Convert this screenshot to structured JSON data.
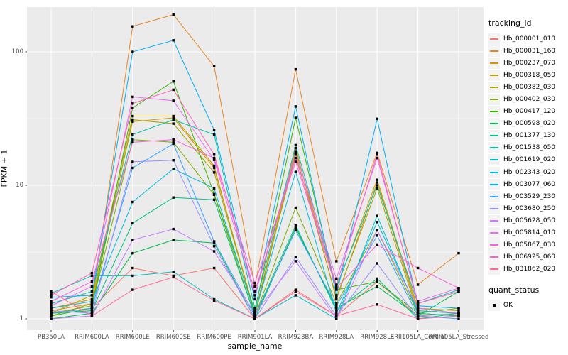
{
  "figure": {
    "panel_bg": "#EBEBEB",
    "grid_color": "#FFFFFF",
    "marker_color": "#000000",
    "tick_text_color": "#4D4D4D",
    "legends": {
      "tracking": {
        "title": "tracking_id"
      },
      "quant": {
        "title": "quant_status",
        "items": [
          {
            "label": "OK"
          }
        ]
      }
    }
  },
  "chart_data": {
    "type": "line",
    "title": "",
    "xlabel": "sample_name",
    "ylabel": "FPKM + 1",
    "y_scale": "log10",
    "ylim": [
      0.82,
      215
    ],
    "grid": true,
    "legend_position": "right",
    "point_marker": "small-black-square",
    "quant_status_all_points": "OK",
    "x_categories": [
      "PB350LA",
      "RRIM600LA",
      "RRIM600LE",
      "RRIM600SE",
      "RRIM600PE",
      "RRIM901LA",
      "RRIM928BA",
      "RRIM928LA",
      "RRIM928LE",
      "RRII105LA_Control",
      "RRII105LA_Stressed"
    ],
    "y_ticks": [
      1,
      10,
      100
    ],
    "y_minor_ticks": [
      3.162,
      31.62
    ],
    "series": [
      {
        "name": "Hb_000001_010",
        "color": "#F8766D",
        "values": [
          1.1,
          1.2,
          2.4,
          2.1,
          2.4,
          1.0,
          1.65,
          1.05,
          1.9,
          1.05,
          1.1
        ]
      },
      {
        "name": "Hb_000031_160",
        "color": "#E88526",
        "values": [
          1.15,
          1.3,
          155,
          190,
          78,
          1.75,
          74,
          2.7,
          17.5,
          1.8,
          3.1
        ]
      },
      {
        "name": "Hb_000237_070",
        "color": "#D89000",
        "values": [
          1.2,
          1.4,
          30,
          32,
          13.5,
          1.1,
          19,
          1.4,
          10.5,
          1.15,
          1.1
        ]
      },
      {
        "name": "Hb_000318_050",
        "color": "#C09B00",
        "values": [
          1.1,
          1.5,
          33,
          33,
          14,
          1.05,
          18,
          1.7,
          11,
          1.2,
          1.15
        ]
      },
      {
        "name": "Hb_000382_030",
        "color": "#A3A500",
        "values": [
          1.05,
          1.3,
          31,
          29,
          12.5,
          1.1,
          17,
          1.45,
          9.5,
          1.1,
          1.05
        ]
      },
      {
        "name": "Hb_000402_030",
        "color": "#7CAE00",
        "values": [
          1.1,
          1.25,
          22,
          21,
          8.5,
          1.05,
          6.8,
          1.3,
          4.6,
          1.1,
          1.2
        ]
      },
      {
        "name": "Hb_000417_120",
        "color": "#39B600",
        "values": [
          1.05,
          1.2,
          38,
          60,
          8.6,
          1.15,
          32,
          1.65,
          1.9,
          1.1,
          1.05
        ]
      },
      {
        "name": "Hb_000598_020",
        "color": "#00BB4E",
        "values": [
          1.0,
          1.1,
          3.1,
          3.9,
          3.7,
          1.0,
          4.8,
          1.2,
          1.75,
          1.05,
          1.6
        ]
      },
      {
        "name": "Hb_001377_130",
        "color": "#00C087",
        "values": [
          1.1,
          1.15,
          5.2,
          8.1,
          7.8,
          1.05,
          5.0,
          1.15,
          2.0,
          1.0,
          1.1
        ]
      },
      {
        "name": "Hb_001538_050",
        "color": "#00C1AB",
        "values": [
          1.3,
          1.6,
          24,
          31,
          24,
          1.2,
          20,
          1.75,
          10,
          1.3,
          1.65
        ]
      },
      {
        "name": "Hb_001619_020",
        "color": "#00BFC4",
        "values": [
          1.55,
          2.1,
          2.1,
          2.25,
          1.4,
          1.0,
          1.5,
          1.0,
          5.9,
          1.1,
          1.05
        ]
      },
      {
        "name": "Hb_002343_020",
        "color": "#00BAE0",
        "values": [
          1.2,
          1.35,
          7.5,
          13.3,
          9.5,
          1.1,
          12.6,
          1.1,
          5.3,
          1.15,
          1.1
        ]
      },
      {
        "name": "Hb_003077_060",
        "color": "#00B0F6",
        "values": [
          1.45,
          1.5,
          100,
          122,
          26,
          1.4,
          39,
          1.5,
          31.5,
          1.25,
          1.2
        ]
      },
      {
        "name": "Hb_003529_230",
        "color": "#35A2FF",
        "values": [
          1.1,
          1.2,
          13.5,
          20.5,
          3.8,
          1.05,
          4.6,
          1.25,
          4.2,
          1.05,
          1.0
        ]
      },
      {
        "name": "Hb_003680_250",
        "color": "#9590FF",
        "values": [
          1.15,
          1.1,
          15,
          15.4,
          3.5,
          1.0,
          2.9,
          1.05,
          2.6,
          1.0,
          1.05
        ]
      },
      {
        "name": "Hb_005628_050",
        "color": "#C77CFF",
        "values": [
          1.0,
          1.05,
          3.9,
          4.7,
          3.2,
          1.1,
          2.7,
          1.0,
          4.6,
          1.2,
          1.1
        ]
      },
      {
        "name": "Hb_005814_010",
        "color": "#E76BF3",
        "values": [
          1.25,
          1.75,
          46,
          43,
          15.5,
          1.5,
          17.5,
          2.0,
          16,
          1.35,
          1.7
        ]
      },
      {
        "name": "Hb_005867_030",
        "color": "#FA62DB",
        "values": [
          1.35,
          1.9,
          21,
          22,
          16,
          1.85,
          15,
          1.7,
          3.6,
          2.4,
          1.7
        ]
      },
      {
        "name": "Hb_006925_060",
        "color": "#FF62BC",
        "values": [
          1.5,
          2.2,
          41,
          52,
          17,
          1.6,
          16,
          1.8,
          17,
          1.3,
          1.6
        ]
      },
      {
        "name": "Hb_031862_020",
        "color": "#FF6A98",
        "values": [
          1.6,
          1.05,
          1.65,
          2.05,
          1.37,
          1.0,
          1.6,
          1.05,
          1.28,
          1.0,
          1.05
        ]
      }
    ]
  }
}
